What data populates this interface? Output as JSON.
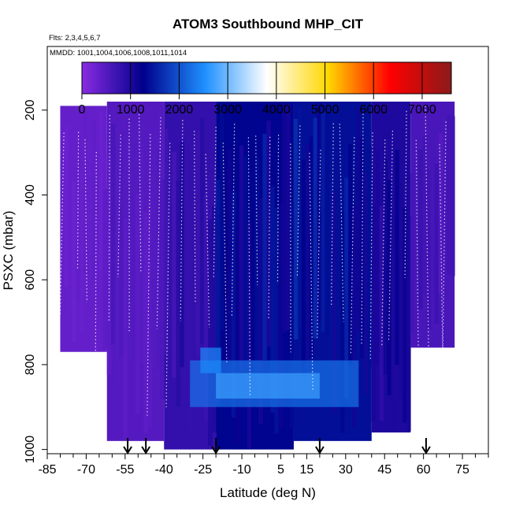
{
  "chart_data": {
    "type": "heatmap",
    "title": "ATOM3 Southbound MHP_CIT",
    "subtitle_flights": "Flts: 2,3,4,5,6,7",
    "subtitle_dates": "MMDD: 1001,1004,1006,1008,1011,1014",
    "xlabel": "Latitude (deg N)",
    "ylabel": "PSXC (mbar)",
    "xlim": [
      -85,
      85
    ],
    "ylim": [
      1010,
      50
    ],
    "x_ticks": [
      -85,
      -70,
      -55,
      -40,
      -25,
      -10,
      5,
      15,
      30,
      45,
      60,
      75
    ],
    "x_tick_labels": [
      "-85",
      "-70",
      "-55",
      "-40",
      "-25",
      "-10",
      "5",
      "15",
      "30",
      "45",
      "60",
      "75"
    ],
    "y_ticks": [
      200,
      400,
      600,
      800,
      1000
    ],
    "y_tick_labels": [
      "200",
      "400",
      "600",
      "800",
      "1000"
    ],
    "colorbar": {
      "min": 0,
      "max": 7600,
      "ticks": [
        0,
        1000,
        2000,
        3000,
        4000,
        5000,
        6000,
        7000
      ],
      "tick_labels": [
        "0",
        "1000",
        "2000",
        "3000",
        "4000",
        "5000",
        "6000",
        "7000"
      ],
      "colors": [
        "#8a2be2",
        "#00008b",
        "#1e90ff",
        "#ffffff",
        "#ffd700",
        "#ff0000",
        "#8b1a1a"
      ]
    },
    "flight_markers_lat": [
      -54,
      -47,
      -20,
      20,
      61
    ],
    "value_regions": [
      {
        "lat": [
          -80,
          -62
        ],
        "p": [
          190,
          770
        ],
        "value": 350
      },
      {
        "lat": [
          -62,
          -40
        ],
        "p": [
          180,
          980
        ],
        "value": 500
      },
      {
        "lat": [
          -40,
          -20
        ],
        "p": [
          180,
          1000
        ],
        "value": 800
      },
      {
        "lat": [
          -20,
          10
        ],
        "p": [
          180,
          1000
        ],
        "value": 1300
      },
      {
        "lat": [
          10,
          40
        ],
        "p": [
          180,
          980
        ],
        "value": 1400
      },
      {
        "lat": [
          40,
          55
        ],
        "p": [
          180,
          960
        ],
        "value": 1000
      },
      {
        "lat": [
          55,
          72
        ],
        "p": [
          180,
          760
        ],
        "value": 600
      }
    ]
  }
}
